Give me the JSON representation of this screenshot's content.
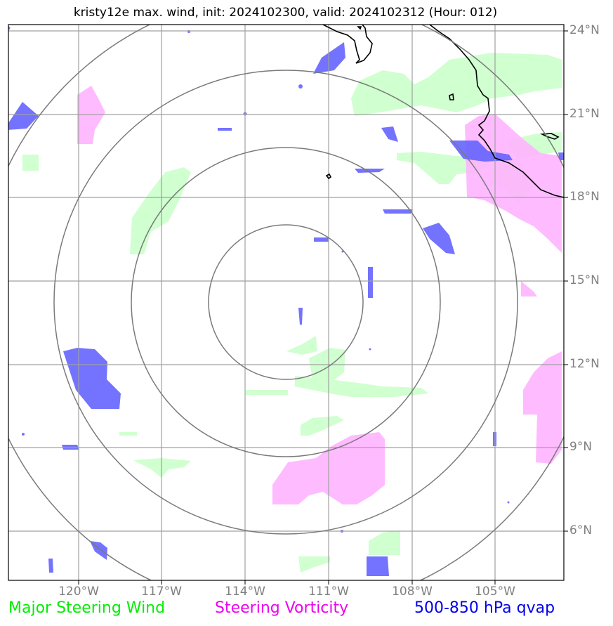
{
  "title": "kristy12e max. wind, init: 2024102300, valid: 2024102312 (Hour: 012)",
  "map": {
    "lat_labels": [
      "24°N",
      "21°N",
      "18°N",
      "15°N",
      "12°N",
      "9°N",
      "6°N"
    ],
    "lon_labels": [
      "120°W",
      "117°W",
      "114°W",
      "111°W",
      "108°W",
      "105°W"
    ],
    "range_rings": 4,
    "colors": {
      "steering_wind": "#c8ffc8",
      "steering_vorticity": "#ffb4ff",
      "qvap": "#6464ff",
      "grid": "#a0a0a0",
      "rings": "#7a7a7a",
      "coastline": "#000000"
    }
  },
  "legend": {
    "wind": {
      "label": "Major Steering Wind",
      "color": "#00ee00"
    },
    "vorticity": {
      "label": "Steering Vorticity",
      "color": "#ee00ee"
    },
    "qvap": {
      "label": "500-850 hPa qvap",
      "color": "#0000ee"
    }
  }
}
